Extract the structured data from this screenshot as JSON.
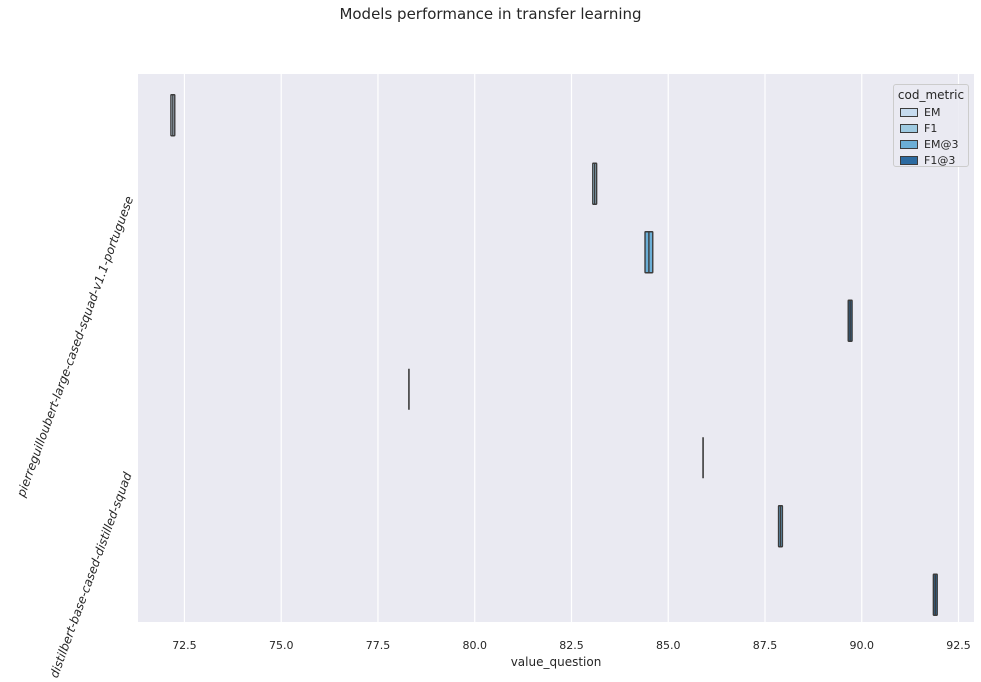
{
  "chart_data": {
    "type": "boxplot",
    "title": "Models performance in transfer learning",
    "xlabel": "value_question",
    "ylabel": "",
    "xlim": [
      71.3,
      92.9
    ],
    "xticks": [
      "72.5",
      "75.0",
      "77.5",
      "80.0",
      "82.5",
      "85.0",
      "87.5",
      "90.0",
      "92.5"
    ],
    "xtick_values": [
      72.5,
      75.0,
      77.5,
      80.0,
      82.5,
      85.0,
      87.5,
      90.0,
      92.5
    ],
    "categories": [
      "pierreguilloubert-large-cased-squad-v1.1-portuguese",
      "distilbert-base-cased-distilled-squad"
    ],
    "legend": {
      "title": "cod_metric",
      "position": "top-right"
    },
    "grid": true,
    "series": [
      {
        "name": "EM",
        "color": "#c6dbef",
        "values": [
          [
            72.15,
            72.25
          ],
          [
            78.3,
            78.3
          ]
        ]
      },
      {
        "name": "F1",
        "color": "#9ecae1",
        "values": [
          [
            83.05,
            83.15
          ],
          [
            85.9,
            85.9
          ]
        ]
      },
      {
        "name": "EM@3",
        "color": "#6baed6",
        "values": [
          [
            84.4,
            84.6
          ],
          [
            87.85,
            87.95
          ]
        ]
      },
      {
        "name": "F1@3",
        "color": "#2c6aa0",
        "values": [
          [
            89.65,
            89.75
          ],
          [
            91.85,
            91.95
          ]
        ]
      }
    ]
  }
}
